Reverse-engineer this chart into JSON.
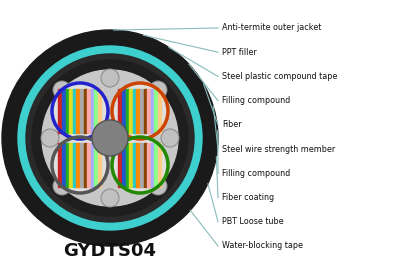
{
  "title": "GYDTS04",
  "labels": [
    "Anti-termite outer jacket",
    "PPT filler",
    "Steel plastic compound tape",
    "Filling compound",
    "Fiber",
    "Steel wire strength member",
    "Filling compound",
    "Fiber coating",
    "PBT Loose tube",
    "Water-blocking tape"
  ],
  "background_color": "#ffffff",
  "line_color": "#88bbbb",
  "text_color": "#111111",
  "outer_jacket_color": "#1a1a1a",
  "cyan_ring_color": "#3ecfcf",
  "dark_ring_color": "#2a2a2a",
  "inner_fill_color": "#c8c8c8",
  "center_steel_color": "#808080",
  "ball_color": "#c0c0c0",
  "ball_edge_color": "#888888",
  "tube_fill_color": "#e0e0e0",
  "tube_border_colors": [
    "#2222cc",
    "#cc4400",
    "#555555",
    "#228800"
  ],
  "fiber_colors": [
    "#cc2222",
    "#2255cc",
    "#22aa22",
    "#dddd22",
    "#22cccc",
    "#ff8800",
    "#aaaaaa",
    "#884400",
    "#ffaaaa",
    "#aaaaff",
    "#88ff88",
    "#ffcc88"
  ]
}
